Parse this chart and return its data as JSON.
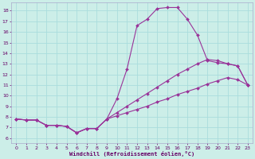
{
  "background_color": "#cceee8",
  "grid_color": "#aadddd",
  "line_color": "#993399",
  "x_label": "Windchill (Refroidissement éolien,°C)",
  "x_ticks": [
    0,
    1,
    2,
    3,
    4,
    5,
    6,
    7,
    8,
    9,
    10,
    11,
    12,
    13,
    14,
    15,
    16,
    17,
    18,
    19,
    20,
    21,
    22,
    23
  ],
  "y_ticks": [
    6,
    7,
    8,
    9,
    10,
    11,
    12,
    13,
    14,
    15,
    16,
    17,
    18
  ],
  "xlim": [
    -0.5,
    23.5
  ],
  "ylim": [
    5.5,
    18.8
  ],
  "series1_x": [
    0,
    1,
    2,
    3,
    4,
    5,
    6,
    7,
    8,
    9,
    10,
    11,
    12,
    13,
    14,
    15,
    16,
    17,
    18,
    19,
    20,
    21,
    22,
    23
  ],
  "series1_y": [
    7.8,
    7.7,
    7.7,
    7.2,
    7.2,
    7.1,
    6.5,
    6.9,
    6.9,
    7.8,
    9.7,
    12.5,
    16.6,
    17.2,
    18.2,
    18.3,
    18.3,
    17.2,
    15.7,
    13.3,
    13.1,
    13.0,
    12.8,
    11.0
  ],
  "series2_x": [
    0,
    1,
    2,
    3,
    4,
    5,
    6,
    7,
    8,
    9,
    10,
    11,
    12,
    13,
    14,
    15,
    16,
    17,
    18,
    19,
    20,
    21,
    22,
    23
  ],
  "series2_y": [
    7.8,
    7.7,
    7.7,
    7.2,
    7.2,
    7.1,
    6.5,
    6.9,
    6.9,
    7.8,
    8.4,
    9.0,
    9.6,
    10.2,
    10.8,
    11.4,
    12.0,
    12.5,
    13.0,
    13.4,
    13.3,
    13.0,
    12.8,
    11.0
  ],
  "series3_x": [
    0,
    1,
    2,
    3,
    4,
    5,
    6,
    7,
    8,
    9,
    10,
    11,
    12,
    13,
    14,
    15,
    16,
    17,
    18,
    19,
    20,
    21,
    22,
    23
  ],
  "series3_y": [
    7.8,
    7.7,
    7.7,
    7.2,
    7.2,
    7.1,
    6.5,
    6.9,
    6.9,
    7.8,
    8.1,
    8.4,
    8.7,
    9.0,
    9.4,
    9.7,
    10.1,
    10.4,
    10.7,
    11.1,
    11.4,
    11.7,
    11.5,
    11.0
  ]
}
